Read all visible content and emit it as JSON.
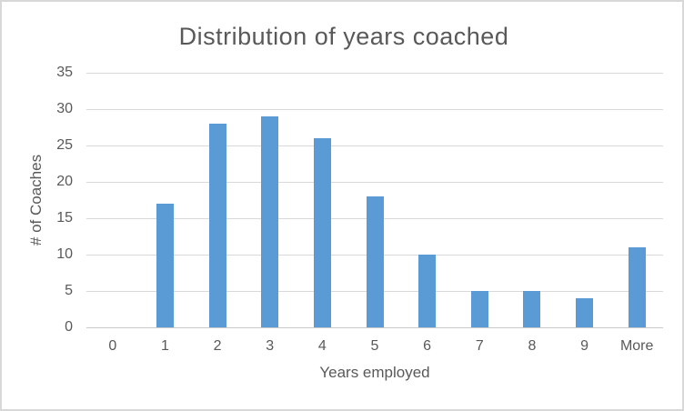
{
  "chart_data": {
    "type": "bar",
    "title": "Distribution of years coached",
    "xlabel": "Years employed",
    "ylabel": "# of Coaches",
    "categories": [
      "0",
      "1",
      "2",
      "3",
      "4",
      "5",
      "6",
      "7",
      "8",
      "9",
      "More"
    ],
    "values": [
      0,
      17,
      28,
      29,
      26,
      18,
      10,
      5,
      5,
      4,
      11
    ],
    "ylim": [
      0,
      35
    ],
    "yticks": [
      0,
      5,
      10,
      15,
      20,
      25,
      30,
      35
    ],
    "grid": true,
    "legend": false
  },
  "colors": {
    "bar": "#5B9BD5",
    "gridline": "#D9D9D9",
    "axis_line": "#C9C9C9",
    "text": "#595959",
    "frame_border": "#D8D8D8",
    "background": "#FFFFFF"
  }
}
